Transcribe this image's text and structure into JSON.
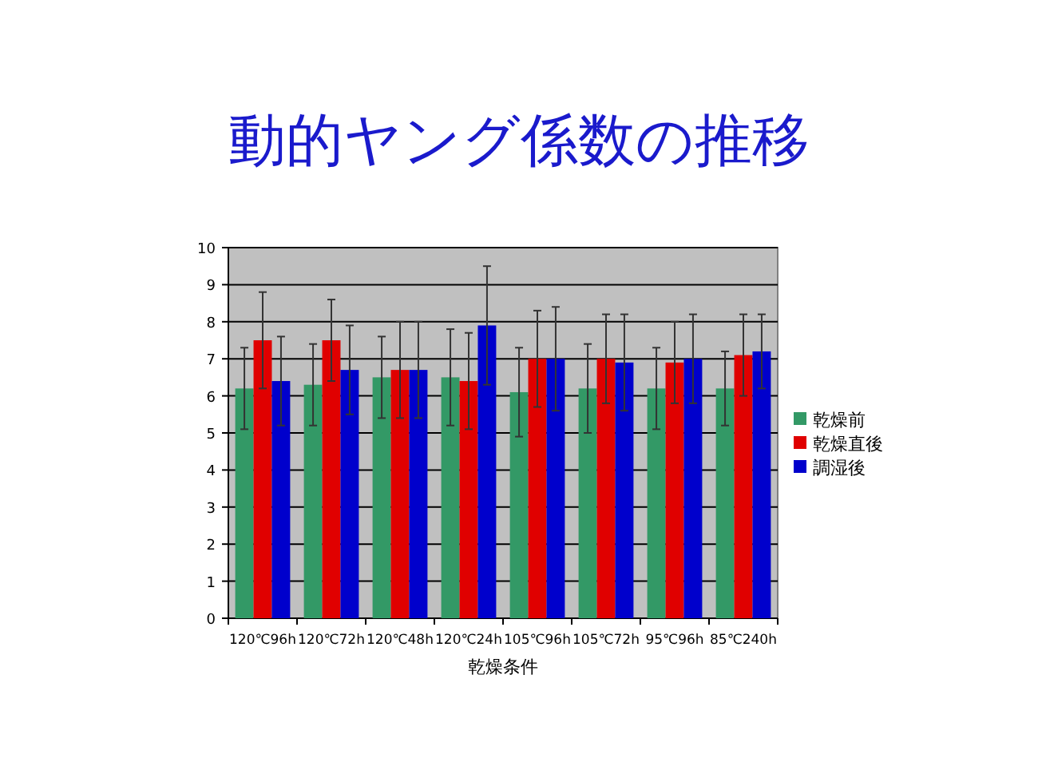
{
  "chart_data": {
    "type": "bar",
    "title": "動的ヤング係数の推移",
    "xlabel": "乾燥条件",
    "categories": [
      "120℃96h",
      "120℃72h",
      "120℃48h",
      "120℃24h",
      "105℃96h",
      "105℃72h",
      "95℃96h",
      "85℃240h"
    ],
    "series": [
      {
        "name": "乾燥前",
        "color": "#339966",
        "values": [
          6.2,
          6.3,
          6.5,
          6.5,
          6.1,
          6.2,
          6.2,
          6.2
        ],
        "errors": [
          1.1,
          1.1,
          1.1,
          1.3,
          1.2,
          1.2,
          1.1,
          1.0
        ]
      },
      {
        "name": "乾燥直後",
        "color": "#e00000",
        "values": [
          7.5,
          7.5,
          6.7,
          6.4,
          7.0,
          7.0,
          6.9,
          7.1
        ],
        "errors": [
          1.3,
          1.1,
          1.3,
          1.3,
          1.3,
          1.2,
          1.1,
          1.1
        ]
      },
      {
        "name": "調湿後",
        "color": "#0000cc",
        "values": [
          6.4,
          6.7,
          6.7,
          7.9,
          7.0,
          6.9,
          7.0,
          7.2
        ],
        "errors": [
          1.2,
          1.2,
          1.3,
          1.6,
          1.4,
          1.3,
          1.2,
          1.0
        ]
      }
    ],
    "ylim": [
      0,
      10
    ],
    "yticks": [
      0,
      1,
      2,
      3,
      4,
      5,
      6,
      7,
      8,
      9,
      10
    ],
    "grid": "y",
    "legend": "right"
  }
}
